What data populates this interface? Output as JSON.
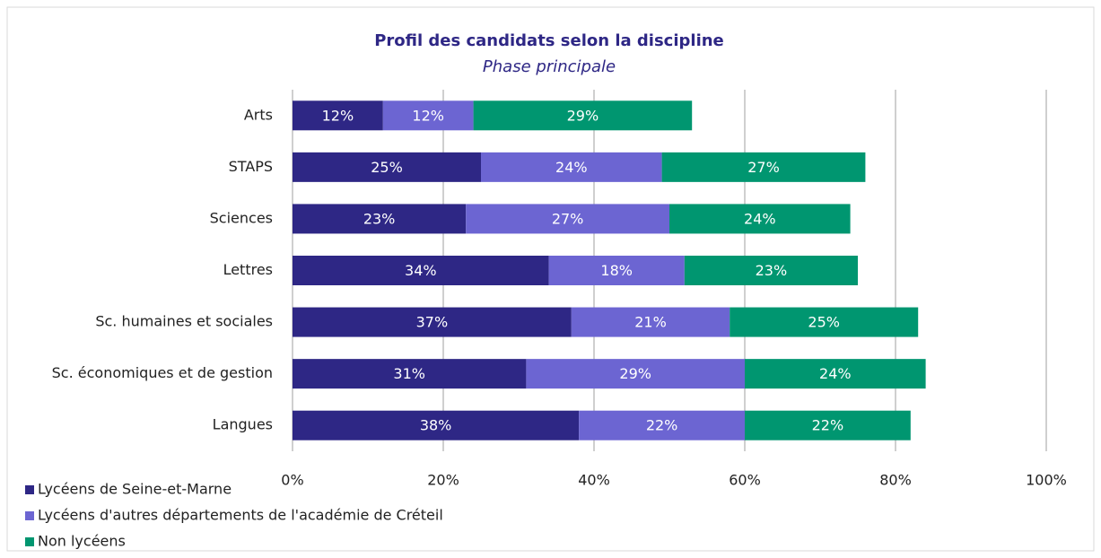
{
  "chart_data": {
    "type": "bar",
    "orientation": "horizontal",
    "stacked": true,
    "title": "Profil des candidats selon la discipline",
    "subtitle": "Phase principale",
    "categories": [
      "Arts",
      "STAPS",
      "Sciences",
      "Lettres",
      "Sc. humaines et sociales",
      "Sc. économiques et de gestion",
      "Langues"
    ],
    "series": [
      {
        "name": "Lycéens de Seine-et-Marne",
        "color": "#2e2785",
        "values": [
          12,
          25,
          23,
          34,
          37,
          31,
          38
        ],
        "value_labels": [
          "12%",
          "25%",
          "23%",
          "34%",
          "37%",
          "31%",
          "38%"
        ]
      },
      {
        "name": "Lycéens d'autres départements de l'académie de Créteil",
        "color": "#6c65d2",
        "values": [
          12,
          24,
          27,
          18,
          21,
          29,
          22
        ],
        "value_labels": [
          "12%",
          "24%",
          "27%",
          "18%",
          "21%",
          "29%",
          "22%"
        ]
      },
      {
        "name": "Non lycéens",
        "color": "#009670",
        "values": [
          29,
          27,
          24,
          23,
          25,
          24,
          22
        ],
        "value_labels": [
          "29%",
          "27%",
          "24%",
          "23%",
          "25%",
          "24%",
          "22%"
        ]
      }
    ],
    "xlim": [
      0,
      100
    ],
    "xticks": [
      {
        "value": 0,
        "label": "0%"
      },
      {
        "value": 20,
        "label": "20%"
      },
      {
        "value": 40,
        "label": "40%"
      },
      {
        "value": 60,
        "label": "60%"
      },
      {
        "value": 80,
        "label": "80%"
      },
      {
        "value": 100,
        "label": "100%"
      }
    ],
    "grid": true
  }
}
